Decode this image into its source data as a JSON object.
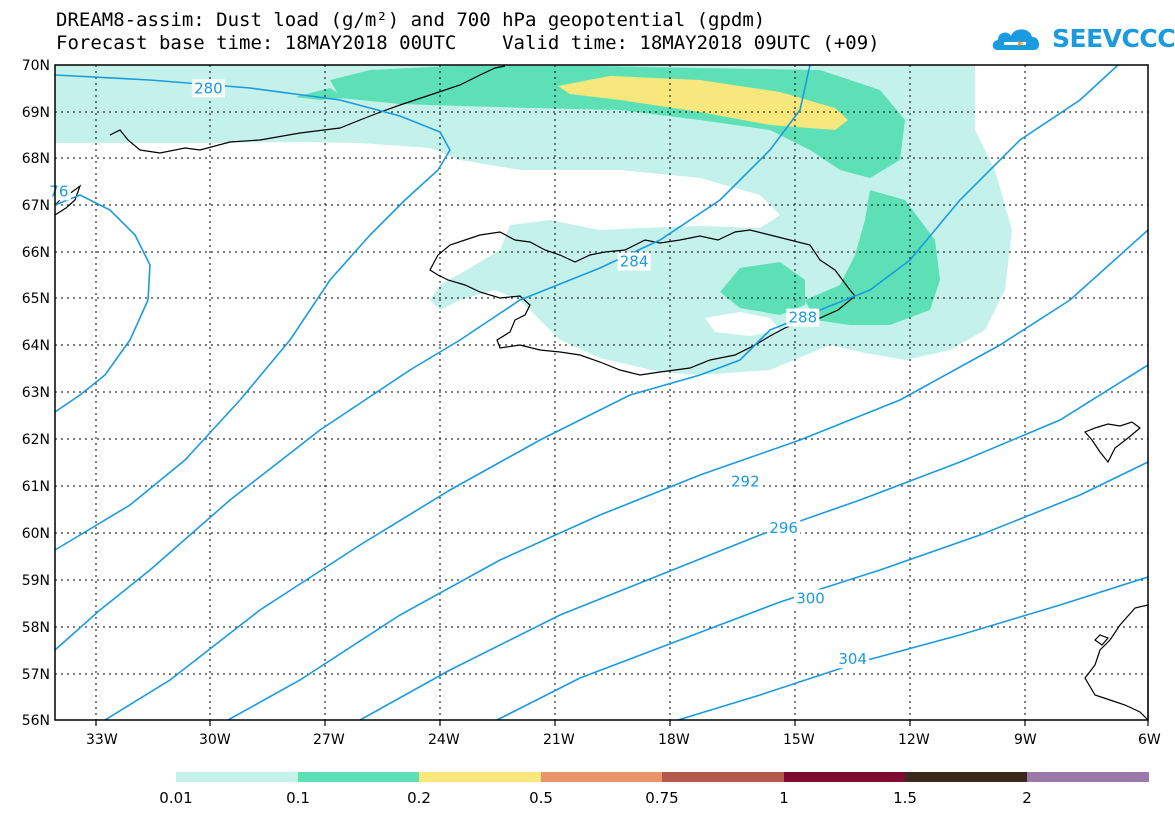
{
  "title_line1": "DREAM8-assim: Dust load (g/m²) and 700 hPa geopotential (gpdm)",
  "title_line2": "Forecast base time: 18MAY2018 00UTC    Valid time: 18MAY2018 09UTC (+09)",
  "logo_text": "SEEVCCC",
  "colors": {
    "contour": "#1a9be0",
    "bins": [
      "#c4f2eb",
      "#5ee0b6",
      "#f7e77c",
      "#e8956a",
      "#b35a4e",
      "#7e0a30",
      "#3a2a1c",
      "#9a78a8"
    ]
  },
  "chart_data": {
    "type": "map",
    "title": "DREAM8-assim: Dust load (g/m²) and 700 hPa geopotential (gpdm)",
    "xlim": [
      -34.5,
      -6
    ],
    "ylim": [
      56,
      70
    ],
    "x_ticks": [
      -33,
      -30,
      -27,
      -24,
      -21,
      -18,
      -15,
      -12,
      -9,
      -6
    ],
    "x_tick_labels": [
      "33W",
      "30W",
      "27W",
      "24W",
      "21W",
      "18W",
      "15W",
      "12W",
      "9W",
      "6W"
    ],
    "y_ticks": [
      70,
      69,
      68,
      67,
      66,
      65,
      64,
      63,
      62,
      61,
      60,
      59,
      58,
      57,
      56
    ],
    "y_tick_labels": [
      "70N",
      "69N",
      "68N",
      "67N",
      "66N",
      "65N",
      "64N",
      "63N",
      "62N",
      "61N",
      "60N",
      "59N",
      "58N",
      "57N",
      "56N"
    ],
    "colorbar_labels": [
      "0.01",
      "0.1",
      "0.2",
      "0.5",
      "0.75",
      "1",
      "1.5",
      "2"
    ],
    "contour_labels": [
      {
        "text": "280",
        "lon": -30.5,
        "lat": 69.5
      },
      {
        "text": "76",
        "lon": -34.4,
        "lat": 67.3
      },
      {
        "text": "284",
        "lon": -19.4,
        "lat": 65.8
      },
      {
        "text": "288",
        "lon": -15.0,
        "lat": 64.6
      },
      {
        "text": "292",
        "lon": -16.5,
        "lat": 61.1
      },
      {
        "text": "296",
        "lon": -15.5,
        "lat": 60.1
      },
      {
        "text": "300",
        "lon": -14.8,
        "lat": 58.6
      },
      {
        "text": "304",
        "lon": -13.7,
        "lat": 57.3
      }
    ]
  }
}
